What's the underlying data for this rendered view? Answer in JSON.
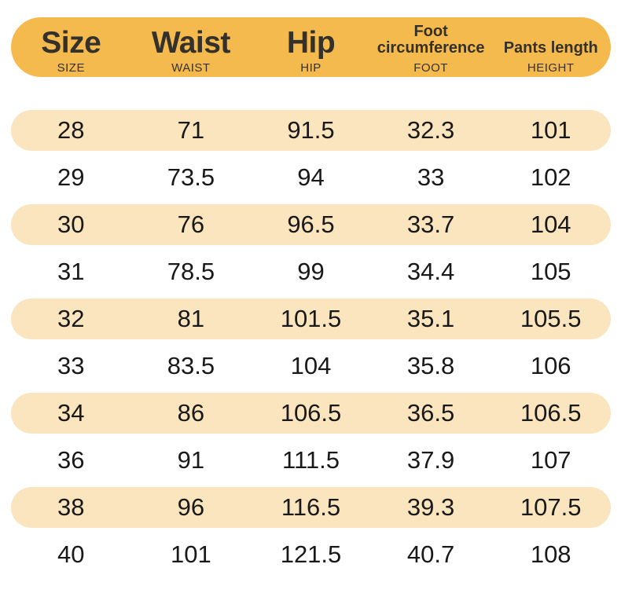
{
  "colors": {
    "header_bg": "#F5BA4E",
    "row_alt_bg": "#FAE5BE",
    "header_text": "#34302A",
    "cell_text": "#191919",
    "page_bg": "#FFFFFF"
  },
  "table": {
    "columns": [
      {
        "key": "size",
        "label": "Size",
        "sublabel": "SIZE"
      },
      {
        "key": "waist",
        "label": "Waist",
        "sublabel": "WAIST"
      },
      {
        "key": "hip",
        "label": "Hip",
        "sublabel": "HIP"
      },
      {
        "key": "foot",
        "label": "Foot circumference",
        "sublabel": "FOOT"
      },
      {
        "key": "height",
        "label": "Pants length",
        "sublabel": "HEIGHT"
      }
    ],
    "rows": [
      [
        "28",
        "71",
        "91.5",
        "32.3",
        "101"
      ],
      [
        "29",
        "73.5",
        "94",
        "33",
        "102"
      ],
      [
        "30",
        "76",
        "96.5",
        "33.7",
        "104"
      ],
      [
        "31",
        "78.5",
        "99",
        "34.4",
        "105"
      ],
      [
        "32",
        "81",
        "101.5",
        "35.1",
        "105.5"
      ],
      [
        "33",
        "83.5",
        "104",
        "35.8",
        "106"
      ],
      [
        "34",
        "86",
        "106.5",
        "36.5",
        "106.5"
      ],
      [
        "36",
        "91",
        "111.5",
        "37.9",
        "107"
      ],
      [
        "38",
        "96",
        "116.5",
        "39.3",
        "107.5"
      ],
      [
        "40",
        "101",
        "121.5",
        "40.7",
        "108"
      ]
    ]
  },
  "chart_data": {
    "type": "table",
    "title": "",
    "columns": [
      "Size",
      "Waist",
      "Hip",
      "Foot circumference",
      "Pants length"
    ],
    "column_sublabels": [
      "SIZE",
      "WAIST",
      "HIP",
      "FOOT",
      "HEIGHT"
    ],
    "rows": [
      [
        28,
        71,
        91.5,
        32.3,
        101
      ],
      [
        29,
        73.5,
        94,
        33,
        102
      ],
      [
        30,
        76,
        96.5,
        33.7,
        104
      ],
      [
        31,
        78.5,
        99,
        34.4,
        105
      ],
      [
        32,
        81,
        101.5,
        35.1,
        105.5
      ],
      [
        33,
        83.5,
        104,
        35.8,
        106
      ],
      [
        34,
        86,
        106.5,
        36.5,
        106.5
      ],
      [
        36,
        91,
        111.5,
        37.9,
        107
      ],
      [
        38,
        96,
        116.5,
        39.3,
        107.5
      ],
      [
        40,
        101,
        121.5,
        40.7,
        108
      ]
    ],
    "layout_hints": {
      "header_style": "rounded amber pill",
      "row_striping": "odd rows (1st,3rd,...) cream rounded pills, others white",
      "alignment": "all cells centered, 5 equal columns"
    }
  }
}
